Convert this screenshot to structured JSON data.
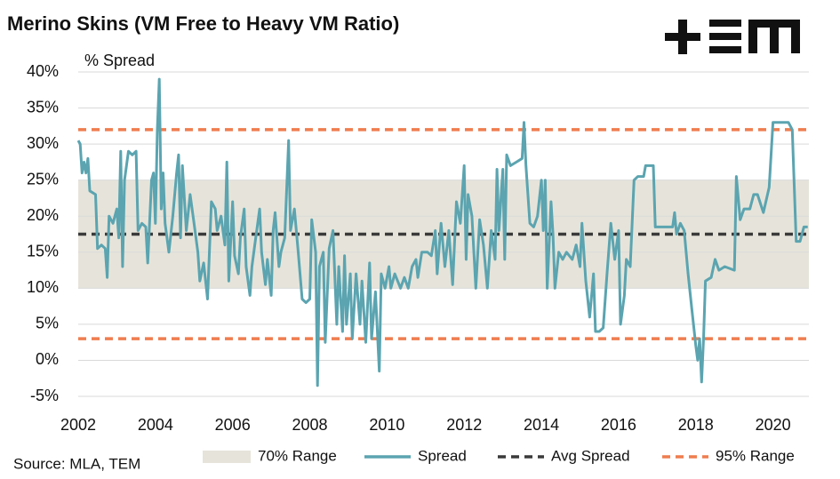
{
  "chart_data": {
    "type": "line",
    "title": "Merino Skins (VM Free to Heavy VM Ratio)",
    "y_label": "% Spread",
    "source": "Source: MLA, TEM",
    "xlim": [
      2002,
      2020.93
    ],
    "xticks": [
      2002,
      2004,
      2006,
      2008,
      2010,
      2012,
      2014,
      2016,
      2018,
      2020
    ],
    "ylim": [
      -5,
      40
    ],
    "yticks": [
      {
        "value": 40,
        "label": "40%"
      },
      {
        "value": 35,
        "label": "35%"
      },
      {
        "value": 30,
        "label": "30%"
      },
      {
        "value": 25,
        "label": "25%"
      },
      {
        "value": 20,
        "label": "20%"
      },
      {
        "value": 15,
        "label": "15%"
      },
      {
        "value": 10,
        "label": "10%"
      },
      {
        "value": 5,
        "label": "5%"
      },
      {
        "value": 0,
        "label": "0%"
      },
      {
        "value": -5,
        "label": "-5%"
      }
    ],
    "grid": true,
    "x": [
      2002.0,
      2002.05,
      2002.1,
      2002.15,
      2002.2,
      2002.25,
      2002.3,
      2002.45,
      2002.5,
      2002.6,
      2002.7,
      2002.75,
      2002.8,
      2002.9,
      2003.0,
      2003.05,
      2003.1,
      2003.15,
      2003.2,
      2003.3,
      2003.4,
      2003.5,
      2003.55,
      2003.65,
      2003.75,
      2003.8,
      2003.9,
      2003.95,
      2004.0,
      2004.05,
      2004.1,
      2004.15,
      2004.2,
      2004.25,
      2004.35,
      2004.45,
      2004.55,
      2004.6,
      2004.65,
      2004.7,
      2004.8,
      2004.9,
      2005.0,
      2005.1,
      2005.15,
      2005.25,
      2005.3,
      2005.35,
      2005.45,
      2005.55,
      2005.6,
      2005.7,
      2005.8,
      2005.85,
      2005.9,
      2006.0,
      2006.05,
      2006.15,
      2006.2,
      2006.3,
      2006.35,
      2006.45,
      2006.5,
      2006.6,
      2006.7,
      2006.75,
      2006.85,
      2006.9,
      2007.0,
      2007.05,
      2007.1,
      2007.2,
      2007.25,
      2007.35,
      2007.45,
      2007.5,
      2007.6,
      2007.7,
      2007.8,
      2007.9,
      2008.0,
      2008.05,
      2008.15,
      2008.2,
      2008.25,
      2008.35,
      2008.4,
      2008.5,
      2008.6,
      2008.7,
      2008.75,
      2008.85,
      2008.9,
      2008.95,
      2009.05,
      2009.1,
      2009.2,
      2009.3,
      2009.35,
      2009.45,
      2009.55,
      2009.6,
      2009.7,
      2009.8,
      2009.85,
      2009.95,
      2010.05,
      2010.1,
      2010.2,
      2010.35,
      2010.45,
      2010.55,
      2010.65,
      2010.75,
      2010.8,
      2010.9,
      2011.05,
      2011.15,
      2011.25,
      2011.3,
      2011.4,
      2011.5,
      2011.6,
      2011.7,
      2011.8,
      2011.9,
      2012.0,
      2012.05,
      2012.1,
      2012.2,
      2012.3,
      2012.4,
      2012.5,
      2012.6,
      2012.7,
      2012.8,
      2012.85,
      2012.9,
      2013.0,
      2013.05,
      2013.1,
      2013.2,
      2013.35,
      2013.5,
      2013.55,
      2013.6,
      2013.7,
      2013.8,
      2013.9,
      2014.0,
      2014.05,
      2014.1,
      2014.15,
      2014.25,
      2014.3,
      2014.35,
      2014.45,
      2014.55,
      2014.65,
      2014.8,
      2014.9,
      2015.0,
      2015.05,
      2015.15,
      2015.25,
      2015.35,
      2015.4,
      2015.5,
      2015.6,
      2015.7,
      2015.8,
      2015.9,
      2016.0,
      2016.05,
      2016.15,
      2016.2,
      2016.3,
      2016.4,
      2016.5,
      2016.65,
      2016.7,
      2016.9,
      2016.95,
      2017.3,
      2017.4,
      2017.45,
      2017.5,
      2017.6,
      2017.7,
      2017.8,
      2017.9,
      2018.0,
      2018.05,
      2018.1,
      2018.15,
      2018.2,
      2018.25,
      2018.4,
      2018.5,
      2018.6,
      2018.75,
      2019.0,
      2019.05,
      2019.15,
      2019.25,
      2019.4,
      2019.5,
      2019.6,
      2019.75,
      2019.9,
      2020.0,
      2020.4,
      2020.5,
      2020.6,
      2020.7,
      2020.8,
      2020.9
    ],
    "series": [
      {
        "name": "Spread",
        "color": "#5ba4b0",
        "values": [
          30.5,
          30,
          26,
          27.5,
          26,
          28,
          23.5,
          23,
          15.5,
          16,
          15.5,
          11.5,
          20,
          19,
          21,
          17,
          29,
          13,
          25,
          29,
          28.5,
          29,
          18,
          19,
          18.5,
          13.5,
          25,
          26,
          19,
          32,
          39,
          21,
          26,
          19,
          15,
          20,
          26,
          28.5,
          17,
          27,
          18,
          23,
          19,
          15,
          11,
          13.5,
          11,
          8.5,
          22,
          21,
          18,
          20,
          16,
          27.5,
          11,
          22,
          14.5,
          12,
          17,
          21,
          13,
          9,
          13,
          17,
          21,
          15,
          10.5,
          14,
          9,
          18,
          20.5,
          13,
          15,
          17,
          30.5,
          18,
          21,
          15,
          8.5,
          8,
          8.5,
          19.5,
          15,
          -3.5,
          13,
          15,
          2.5,
          15.5,
          18,
          5,
          13,
          4,
          14.5,
          5,
          12,
          3,
          12,
          5,
          11,
          2.5,
          13.5,
          3,
          9.5,
          -1.5,
          12,
          10,
          13,
          10,
          12,
          10,
          11.5,
          10,
          13,
          14,
          11.5,
          15,
          15,
          14.5,
          18,
          12,
          19,
          13,
          18,
          10.5,
          22,
          19,
          27,
          14,
          23,
          20,
          10,
          19.5,
          16,
          10,
          18,
          14,
          26.5,
          18,
          26.5,
          14,
          28.5,
          27,
          27.5,
          28,
          33,
          27,
          19,
          18.5,
          20,
          25,
          18,
          25,
          10,
          22,
          17.5,
          10,
          15,
          14,
          15,
          14,
          16,
          13,
          19,
          11,
          6,
          12,
          4,
          4,
          4.5,
          12,
          19,
          14,
          18,
          5,
          9,
          14,
          13,
          25,
          25.5,
          25.5,
          27,
          27,
          18.5,
          18.5,
          18.5,
          20.5,
          17.5,
          19,
          18,
          12,
          7,
          2,
          0,
          3,
          -3,
          3,
          11,
          11.5,
          14,
          12.5,
          13,
          12.5,
          25.5,
          19.5,
          21,
          21,
          23,
          23,
          20.5,
          24,
          33,
          33,
          32,
          16.5,
          16.5,
          18.5,
          18.5
        ]
      }
    ],
    "bands": [
      {
        "name": "70% Range",
        "color": "#e6e4da",
        "from": 10,
        "to": 25
      }
    ],
    "reference_lines": [
      {
        "name": "Avg Spread",
        "color": "#3a3a3a",
        "values": [
          17.5
        ]
      },
      {
        "name": "95% Range",
        "color": "#ef7d4f",
        "values": [
          3,
          32
        ]
      }
    ]
  }
}
